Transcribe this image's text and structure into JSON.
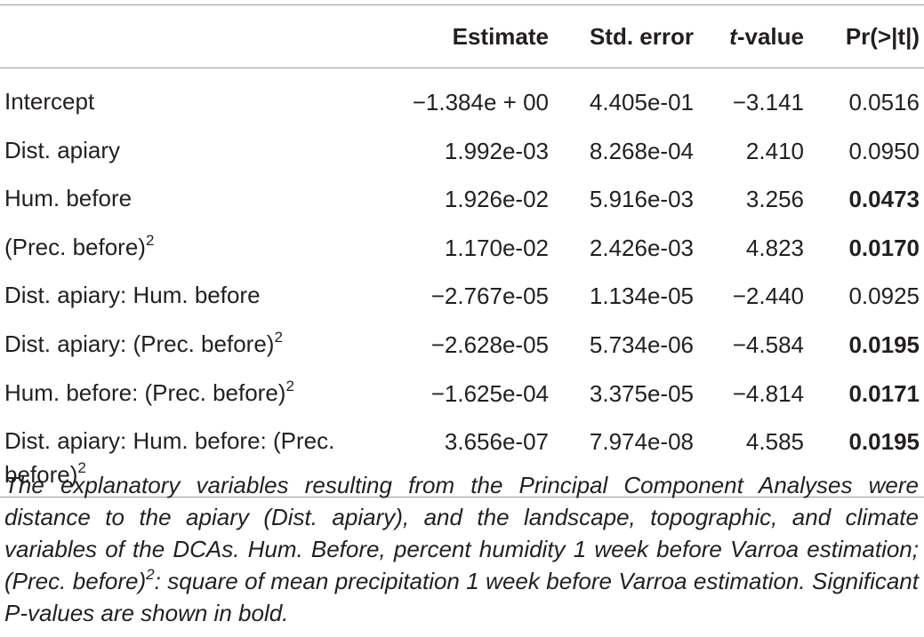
{
  "table": {
    "columns": [
      {
        "text": "Estimate"
      },
      {
        "text": "Std. error"
      },
      {
        "italic": "t",
        "text": "-value"
      },
      {
        "text": "Pr(>|t|)"
      }
    ],
    "rows": [
      {
        "label": "Intercept",
        "values": [
          "−1.384e + 00",
          "4.405e-01",
          "−3.141",
          "0.0516"
        ],
        "bold": false
      },
      {
        "label": "Dist. apiary",
        "values": [
          "1.992e-03",
          "8.268e-04",
          "2.410",
          "0.0950"
        ],
        "bold": false
      },
      {
        "label": "Hum. before",
        "values": [
          "1.926e-02",
          "5.916e-03",
          "3.256",
          "0.0473"
        ],
        "bold": true
      },
      {
        "label": "(Prec. before)",
        "sup": "2",
        "values": [
          "1.170e-02",
          "2.426e-03",
          "4.823",
          "0.0170"
        ],
        "bold": true
      },
      {
        "label": "Dist. apiary: Hum. before",
        "values": [
          "−2.767e-05",
          "1.134e-05",
          "−2.440",
          "0.0925"
        ],
        "bold": false
      },
      {
        "label": "Dist. apiary: (Prec. before)",
        "sup": "2",
        "values": [
          "−2.628e-05",
          "5.734e-06",
          "−4.584",
          "0.0195"
        ],
        "bold": true
      },
      {
        "label": "Hum. before: (Prec. before)",
        "sup": "2",
        "values": [
          "−1.625e-04",
          "3.375e-05",
          "−4.814",
          "0.0171"
        ],
        "bold": true
      },
      {
        "label": "Dist. apiary: Hum. before: (Prec. before)",
        "sup": "2",
        "values": [
          "3.656e-07",
          "7.974e-08",
          "4.585",
          "0.0195"
        ],
        "bold": true
      }
    ],
    "footnote": {
      "before": "The explanatory variables resulting from the Principal Component Analyses were distance to the apiary (Dist. apiary), and the landscape, topographic, and climate variables of the DCAs. Hum. Before, percent humidity 1 week before Varroa estimation; (Prec. before)",
      "sup": "2",
      "after": ": square of mean precipitation 1 week before Varroa estimation. Significant P-values are shown in bold."
    }
  }
}
